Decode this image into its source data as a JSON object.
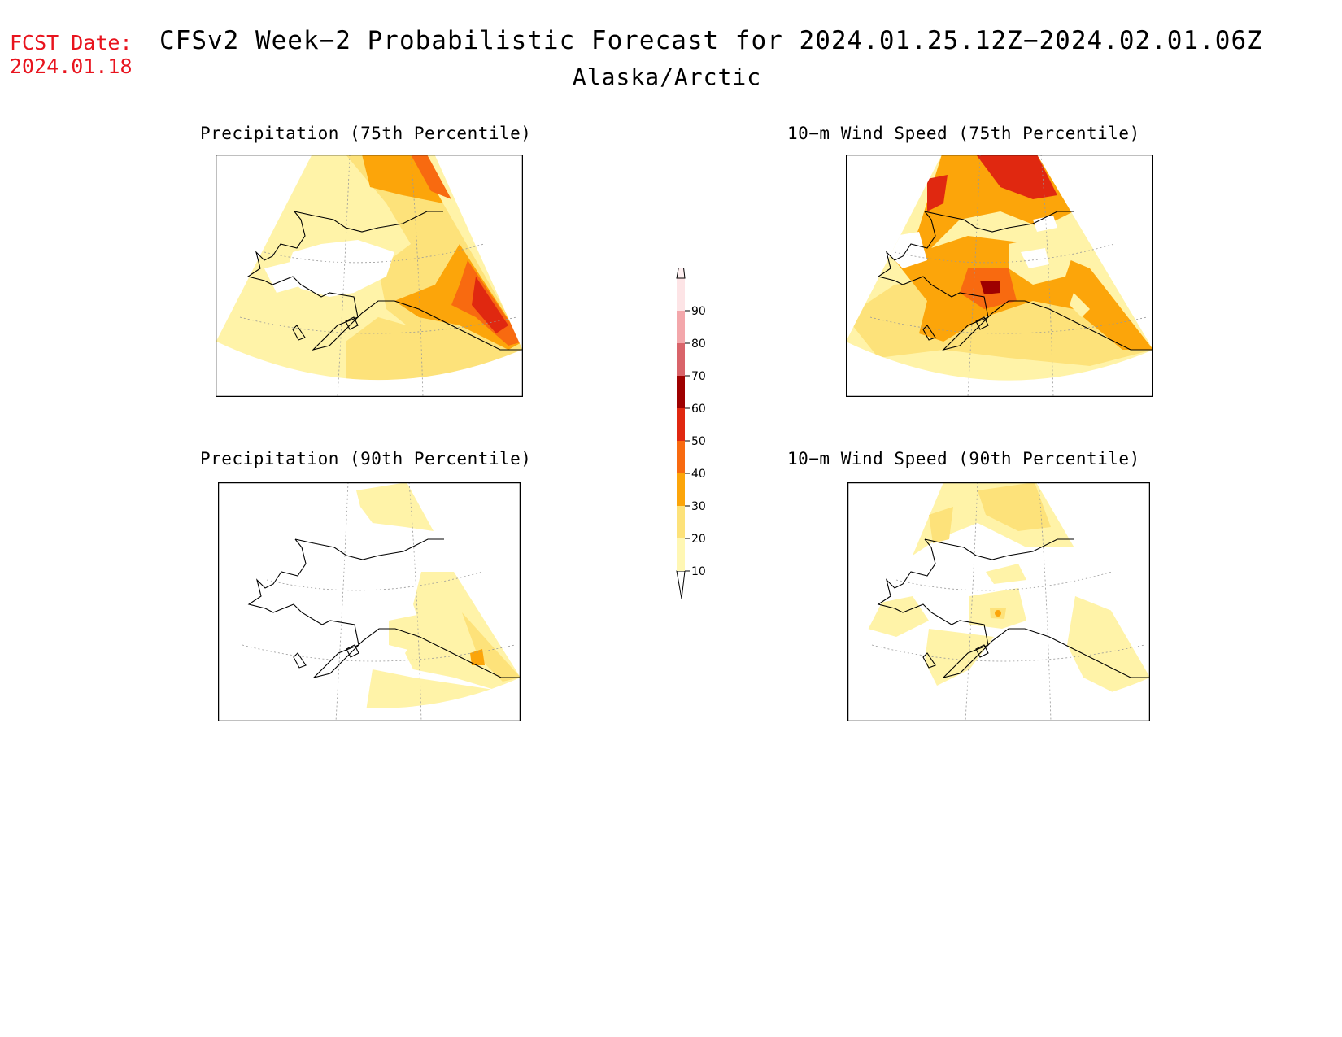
{
  "header": {
    "fcst_label": "FCST Date:",
    "fcst_date": "2024.01.18",
    "title": "CFSv2 Week−2 Probabilistic Forecast for 2024.01.25.12Z−2024.02.01.06Z",
    "region": "Alaska/Arctic"
  },
  "panels": [
    {
      "id": "precip75",
      "title": "Precipitation (75th Percentile)"
    },
    {
      "id": "wind75",
      "title": "10−m Wind Speed (75th Percentile)"
    },
    {
      "id": "precip90",
      "title": "Precipitation (90th Percentile)"
    },
    {
      "id": "wind90",
      "title": "10−m Wind Speed (90th Percentile)"
    }
  ],
  "colorbar": {
    "levels": [
      "10",
      "20",
      "30",
      "40",
      "50",
      "60",
      "70",
      "80",
      "90"
    ],
    "colors": [
      "#fff7b4",
      "#fde27a",
      "#fca50a",
      "#f86a10",
      "#e02810",
      "#9e0000",
      "#d9646a",
      "#f3a7ab",
      "#fde4e6"
    ]
  }
}
